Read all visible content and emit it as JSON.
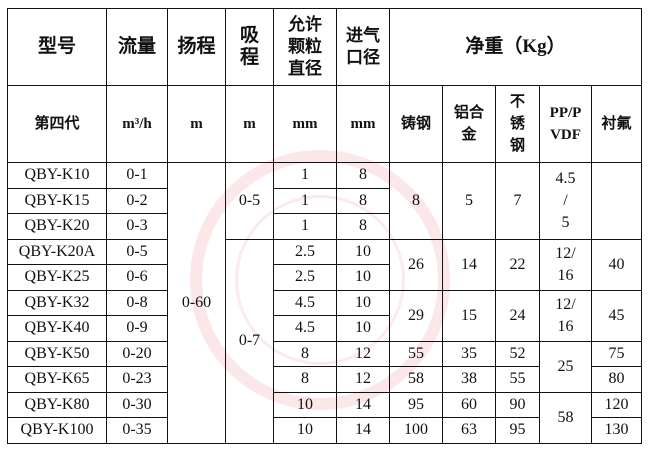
{
  "header": {
    "model": "型号",
    "flow": "流量",
    "head": "扬程",
    "suction": [
      "吸",
      "程"
    ],
    "particle": [
      "允许",
      "颗粒",
      "直径"
    ],
    "inlet": [
      "进气",
      "口径"
    ],
    "weight": "净重（Kg）"
  },
  "units": {
    "model": "第四代",
    "flow": "m³/h",
    "head": "m",
    "suction": "m",
    "particle": "mm",
    "inlet": "mm",
    "cast_steel": "铸钢",
    "aluminum": [
      "铝合",
      "金"
    ],
    "stainless": [
      "不",
      "锈",
      "钢"
    ],
    "pp_pvdf": [
      "PP/P",
      "VDF"
    ],
    "lined_fluorine": "衬氟"
  },
  "head_value": "0-60",
  "suction_groups": [
    "0-5",
    "0-7"
  ],
  "rows": [
    {
      "model": "QBY-K10",
      "flow": "0-1",
      "particle": "1",
      "inlet": "8"
    },
    {
      "model": "QBY-K15",
      "flow": "0-2",
      "particle": "1",
      "inlet": "8"
    },
    {
      "model": "QBY-K20",
      "flow": "0-3",
      "particle": "1",
      "inlet": "8"
    },
    {
      "model": "QBY-K20A",
      "flow": "0-5",
      "particle": "2.5",
      "inlet": "10"
    },
    {
      "model": "QBY-K25",
      "flow": "0-6",
      "particle": "2.5",
      "inlet": "10"
    },
    {
      "model": "QBY-K32",
      "flow": "0-8",
      "particle": "4.5",
      "inlet": "10"
    },
    {
      "model": "QBY-K40",
      "flow": "0-9",
      "particle": "4.5",
      "inlet": "10"
    },
    {
      "model": "QBY-K50",
      "flow": "0-20",
      "particle": "8",
      "inlet": "12"
    },
    {
      "model": "QBY-K65",
      "flow": "0-23",
      "particle": "8",
      "inlet": "12"
    },
    {
      "model": "QBY-K80",
      "flow": "0-30",
      "particle": "10",
      "inlet": "14"
    },
    {
      "model": "QBY-K100",
      "flow": "0-35",
      "particle": "10",
      "inlet": "14"
    }
  ],
  "weights": {
    "g1": {
      "cast": "8",
      "al": "5",
      "ss": "7",
      "pp": [
        "4.5",
        "/",
        "5"
      ],
      "f": ""
    },
    "g2": {
      "cast": "26",
      "al": "14",
      "ss": "22",
      "pp": [
        "12/",
        "16"
      ],
      "f": "40"
    },
    "g3": {
      "cast": "29",
      "al": "15",
      "ss": "24",
      "pp": [
        "12/",
        "16"
      ],
      "f": "45"
    },
    "k50": {
      "cast": "55",
      "al": "35",
      "ss": "52",
      "f": "75"
    },
    "k65": {
      "cast": "58",
      "al": "38",
      "ss": "55",
      "f": "80"
    },
    "pp_k50_65": "25",
    "k80": {
      "cast": "95",
      "al": "60",
      "ss": "90",
      "f": "120"
    },
    "k100": {
      "cast": "100",
      "al": "63",
      "ss": "95",
      "f": "130"
    },
    "pp_k80_100": "58"
  },
  "watermark_color": "#dc3c3c"
}
